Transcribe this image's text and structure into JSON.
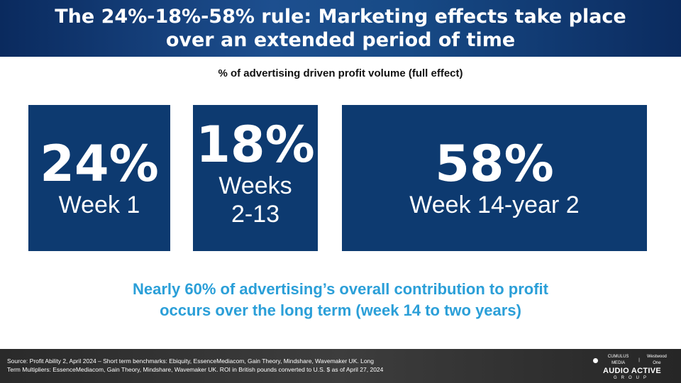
{
  "header": {
    "title_line1": "The 24%-18%-58% rule: Marketing effects take place",
    "title_line2": "over an extended period of time"
  },
  "subtitle": "% of advertising driven profit volume (full effect)",
  "boxes": [
    {
      "percent": "24%",
      "label_line1": "Week 1",
      "label_line2": ""
    },
    {
      "percent": "18%",
      "label_line1": "Weeks",
      "label_line2": "2-13"
    },
    {
      "percent": "58%",
      "label_line1": "Week 14-year 2",
      "label_line2": ""
    }
  ],
  "callout": {
    "line1": "Nearly 60% of advertising’s overall contribution to profit",
    "line2": "occurs over the long term (week 14 to two years)"
  },
  "footer": {
    "source_line1": "Source: Profit Ability 2, April 2024 – Short term benchmarks: Ebiquity, EssenceMediacom, Gain Theory, Mindshare, Wavemaker UK. Long",
    "source_line2": "Term Multipliers: EssenceMediacom, Gain Theory, Mindshare, Wavemaker UK. ROI in British pounds converted to U.S. $ as of April 27, 2024",
    "logo_cumulus": "CUMULUS MEDIA",
    "logo_westwood": "Westwood One",
    "logo_main": "AUDIO ACTIVE",
    "logo_group": "GROUP"
  },
  "colors": {
    "header_blue": "#0a2a5e",
    "box_blue": "#0d3a70",
    "callout_blue": "#2b9fd8",
    "footer_dark": "#2a2a2a"
  }
}
